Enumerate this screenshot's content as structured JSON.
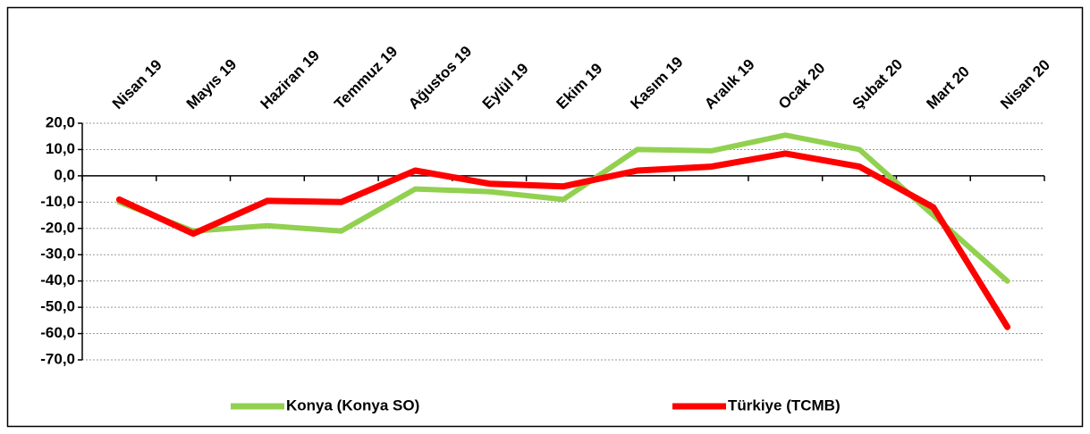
{
  "chart_data": {
    "type": "line",
    "categories": [
      "Nisan 19",
      "Mayıs 19",
      "Haziran 19",
      "Temmuz 19",
      "Ağustos 19",
      "Eylül 19",
      "Ekim 19",
      "Kasım 19",
      "Aralık 19",
      "Ocak 20",
      "Şubat 20",
      "Mart 20",
      "Nisan 20"
    ],
    "series": [
      {
        "name": "Konya (Konya SO)",
        "color": "#92d050",
        "values": [
          -10,
          -21,
          -19,
          -21,
          -5,
          -6,
          -9,
          10,
          9.5,
          15.5,
          10,
          -15,
          -40
        ]
      },
      {
        "name": "Türkiye (TCMB)",
        "color": "#ff0000",
        "values": [
          -9,
          -22,
          -9.5,
          -10,
          2,
          -3,
          -4,
          2,
          3.5,
          8.5,
          3.5,
          -12,
          -57.5
        ]
      }
    ],
    "ylim": [
      -70,
      20
    ],
    "yticks": [
      {
        "value": -70,
        "label": "-70,0"
      },
      {
        "value": -60,
        "label": "-60,0"
      },
      {
        "value": -50,
        "label": "-50,0"
      },
      {
        "value": -40,
        "label": "-40,0"
      },
      {
        "value": -30,
        "label": "-30,0"
      },
      {
        "value": -20,
        "label": "-20,0"
      },
      {
        "value": -10,
        "label": "-10,0"
      },
      {
        "value": 0,
        "label": "0,0"
      },
      {
        "value": 10,
        "label": "10,0"
      },
      {
        "value": 20,
        "label": "20,0"
      }
    ],
    "grid": true,
    "legend": "bottom"
  }
}
